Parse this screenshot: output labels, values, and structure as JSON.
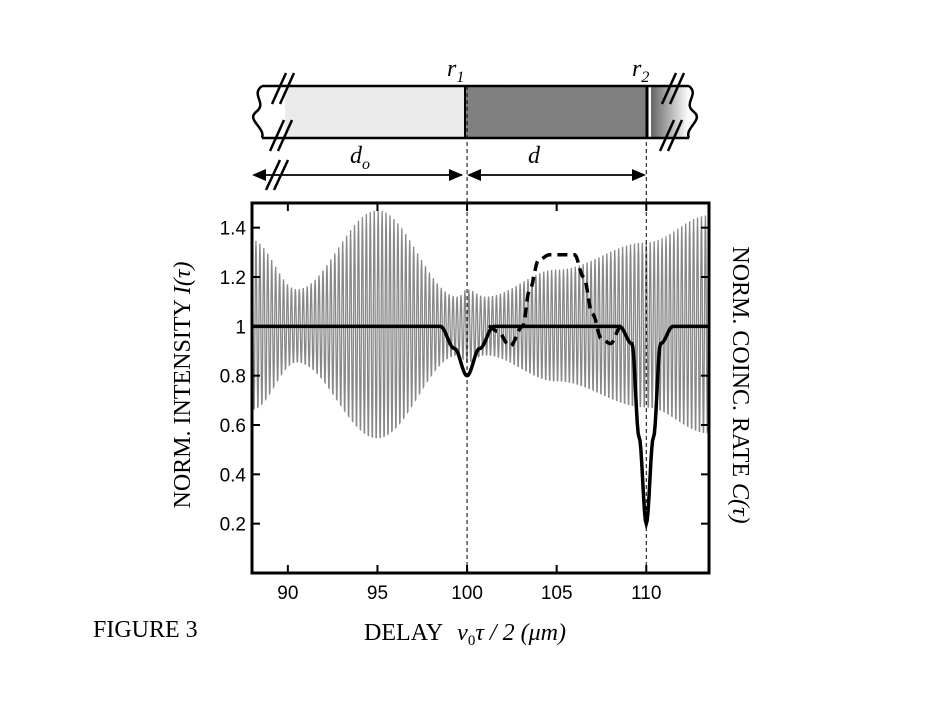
{
  "figure_label": "FIGURE 3",
  "schematic": {
    "mirror_labels": [
      {
        "base": "r",
        "sub": "1"
      },
      {
        "base": "r",
        "sub": "2"
      }
    ],
    "distances": [
      {
        "base": "d",
        "sub": "o"
      },
      {
        "base": "d",
        "sub": ""
      }
    ]
  },
  "chart_data": {
    "type": "line",
    "title": "",
    "xlabel": {
      "prefix": "DELAY",
      "math": "v",
      "sub": "0",
      "rest": "τ / 2 (μm)"
    },
    "ylabel_left": {
      "text": "NORM. INTENSITY ",
      "math": "I(τ)"
    },
    "ylabel_right": {
      "text": "NORM. COINC. RATE ",
      "math": "C(τ)"
    },
    "xlim": [
      88,
      113.5
    ],
    "ylim": [
      0,
      1.5
    ],
    "x_ticks": [
      90,
      95,
      100,
      105,
      110
    ],
    "x_tick_labels": [
      "90",
      "95",
      "100",
      "105",
      "110"
    ],
    "y_ticks": [
      0.2,
      0.4,
      0.6,
      0.8,
      1,
      1.2,
      1.4
    ],
    "y_tick_labels": [
      "0.2",
      "0.4",
      "0.6",
      "0.8",
      "1",
      "1.2",
      "1.4"
    ],
    "vertical_reference_lines": [
      100,
      110
    ],
    "series": [
      {
        "style": "gray-oscillation",
        "description_points": {
          "x": [
            88,
            90.5,
            95,
            99.5,
            100,
            101,
            105,
            110,
            113.5
          ],
          "envelope": [
            0.35,
            0.15,
            0.47,
            0.12,
            0.15,
            0.12,
            0.23,
            0.34,
            0.45
          ]
        },
        "center": 1.0,
        "color": "#888888"
      },
      {
        "style": "solid",
        "x": [
          88,
          98.5,
          99.3,
          100,
          100.7,
          101.5,
          108.5,
          109.2,
          109.6,
          110,
          110.4,
          110.8,
          111.5,
          113.5
        ],
        "y": [
          1,
          1,
          0.91,
          0.8,
          0.91,
          1,
          1,
          0.93,
          0.55,
          0.2,
          0.55,
          0.93,
          1,
          1
        ],
        "color": "#000000"
      },
      {
        "style": "dashed",
        "x": [
          101.2,
          101.7,
          102.4,
          103.1,
          103.5,
          104.0,
          104.6,
          106.0,
          106.5,
          107.0,
          107.5,
          108.0,
          108.6
        ],
        "y": [
          1.0,
          0.98,
          0.92,
          1.0,
          1.15,
          1.27,
          1.29,
          1.29,
          1.2,
          1.05,
          0.95,
          0.93,
          1.0
        ],
        "color": "#000000"
      }
    ]
  }
}
